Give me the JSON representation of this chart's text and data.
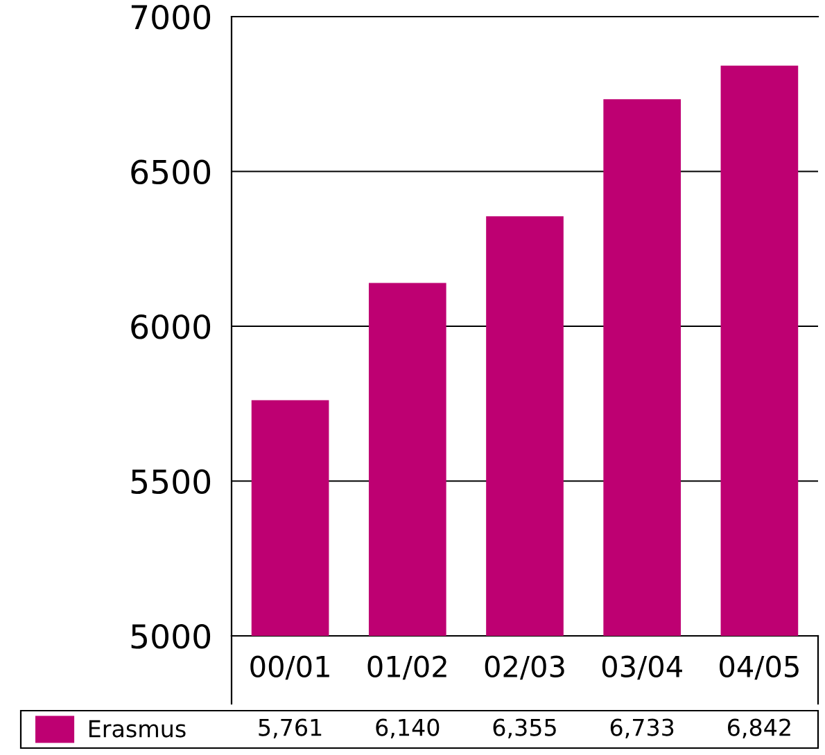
{
  "chart_data": {
    "type": "bar",
    "categories": [
      "00/01",
      "01/02",
      "02/03",
      "03/04",
      "04/05"
    ],
    "series": [
      {
        "name": "Erasmus",
        "color": "#be0072",
        "values": [
          5761,
          6140,
          6355,
          6733,
          6842
        ],
        "value_labels": [
          "5,761",
          "6,140",
          "6,355",
          "6,733",
          "6,842"
        ]
      }
    ],
    "ylim": [
      5000,
      7000
    ],
    "yticks": [
      5000,
      5500,
      6000,
      6500,
      7000
    ],
    "grid": "y",
    "legend": "bottom"
  }
}
